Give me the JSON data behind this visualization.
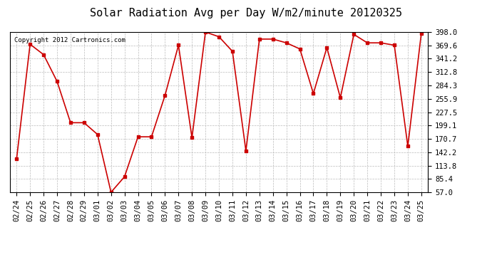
{
  "title": "Solar Radiation Avg per Day W/m2/minute 20120325",
  "copyright": "Copyright 2012 Cartronics.com",
  "dates": [
    "02/24",
    "02/25",
    "02/26",
    "02/27",
    "02/28",
    "02/29",
    "03/01",
    "03/02",
    "03/03",
    "03/04",
    "03/05",
    "03/06",
    "03/07",
    "03/08",
    "03/09",
    "03/10",
    "03/11",
    "03/12",
    "03/13",
    "03/14",
    "03/15",
    "03/16",
    "03/17",
    "03/18",
    "03/19",
    "03/20",
    "03/21",
    "03/22",
    "03/23",
    "03/24",
    "03/25"
  ],
  "values": [
    128,
    372,
    350,
    293,
    205,
    205,
    180,
    57,
    90,
    175,
    175,
    263,
    370,
    173,
    398,
    388,
    357,
    145,
    383,
    383,
    375,
    362,
    267,
    365,
    258,
    393,
    375,
    375,
    370,
    155,
    395
  ],
  "ylim": [
    57.0,
    398.0
  ],
  "yticks": [
    57.0,
    85.4,
    113.8,
    142.2,
    170.7,
    199.1,
    227.5,
    255.9,
    284.3,
    312.8,
    341.2,
    369.6,
    398.0
  ],
  "line_color": "#cc0000",
  "marker": "s",
  "marker_size": 3,
  "bg_color": "#ffffff",
  "plot_bg_color": "#ffffff",
  "grid_color": "#bbbbbb",
  "title_fontsize": 11,
  "tick_fontsize": 7.5,
  "copyright_fontsize": 6.5
}
